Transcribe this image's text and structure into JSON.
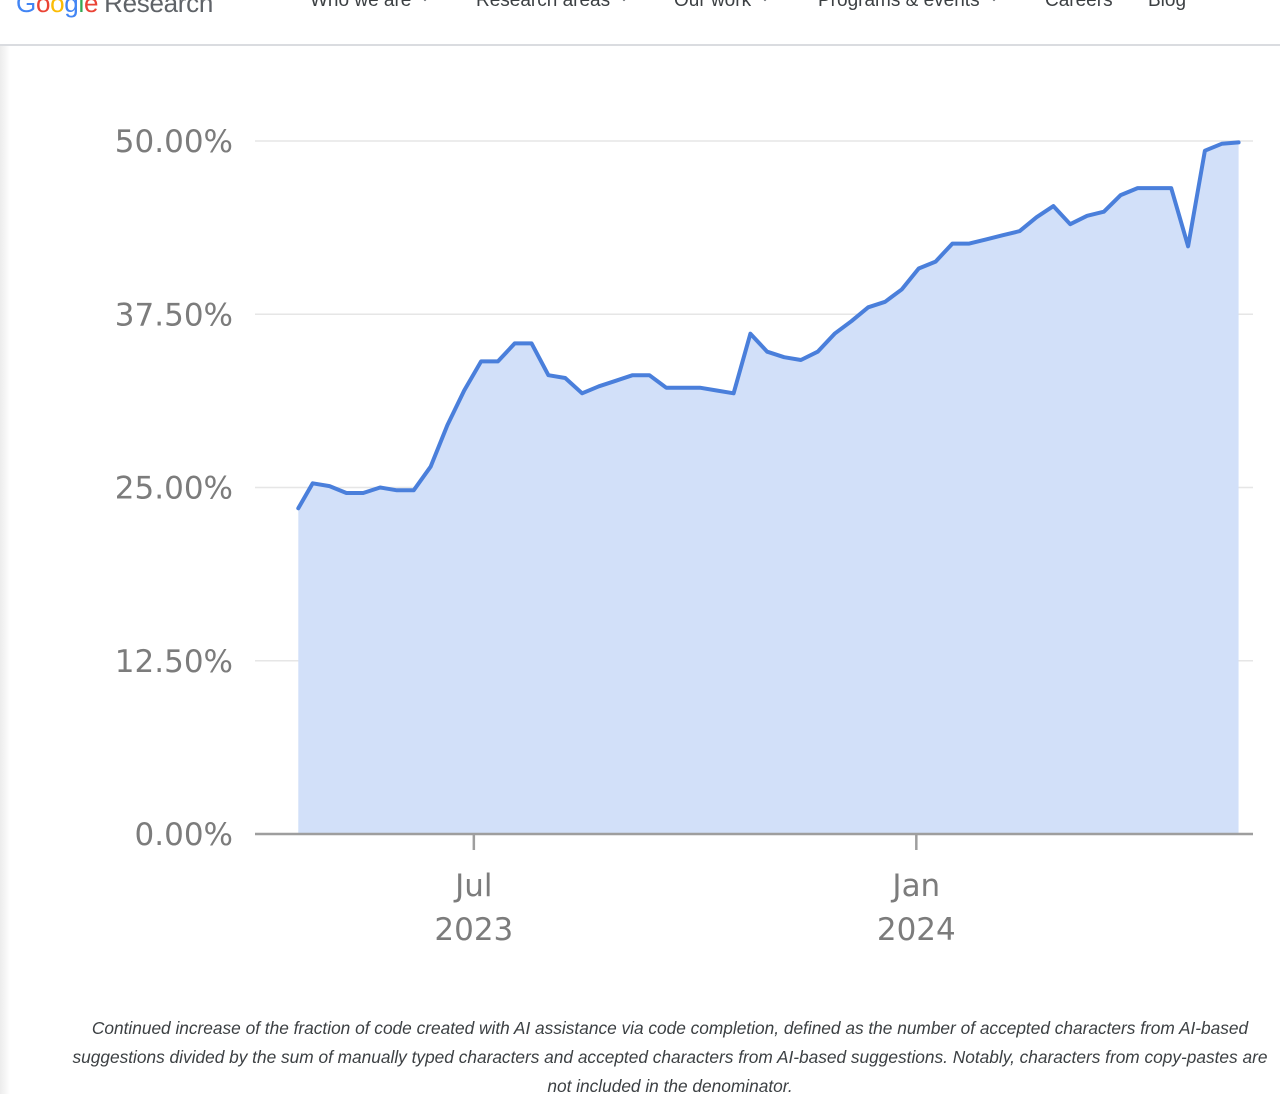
{
  "header": {
    "logo": {
      "google_letters": [
        {
          "ch": "G",
          "color": "#4285F4"
        },
        {
          "ch": "o",
          "color": "#EA4335"
        },
        {
          "ch": "o",
          "color": "#FBBC05"
        },
        {
          "ch": "g",
          "color": "#4285F4"
        },
        {
          "ch": "l",
          "color": "#34A853"
        },
        {
          "ch": "e",
          "color": "#EA4335"
        }
      ],
      "research": "Research"
    },
    "nav": [
      {
        "label": "Who we are",
        "dropdown": true
      },
      {
        "label": "Research areas",
        "dropdown": true
      },
      {
        "label": "Our work",
        "dropdown": true
      },
      {
        "label": "Programs & events",
        "dropdown": true
      },
      {
        "label": "Careers",
        "dropdown": false
      },
      {
        "label": "Blog",
        "dropdown": false
      }
    ]
  },
  "chart_data": {
    "type": "area",
    "title": "",
    "xlabel": "",
    "ylabel": "",
    "ylim": [
      0,
      50
    ],
    "yticks": [
      {
        "value": 0,
        "label": "0.00%"
      },
      {
        "value": 12.5,
        "label": "12.50%"
      },
      {
        "value": 25,
        "label": "25.00%"
      },
      {
        "value": 37.5,
        "label": "37.50%"
      },
      {
        "value": 50,
        "label": "50.00%"
      }
    ],
    "xticks": [
      {
        "date": "2023-07-01",
        "label_top": "Jul",
        "label_bottom": "2023"
      },
      {
        "date": "2024-01-01",
        "label_top": "Jan",
        "label_bottom": "2024"
      }
    ],
    "xlim": [
      "2023-04-01",
      "2024-05-20"
    ],
    "grid": true,
    "line_color": "#4a7fdb",
    "fill_color": "#d2e0f9",
    "x": [
      "2023-04-19",
      "2023-04-25",
      "2023-05-02",
      "2023-05-09",
      "2023-05-16",
      "2023-05-23",
      "2023-05-30",
      "2023-06-06",
      "2023-06-13",
      "2023-06-20",
      "2023-06-27",
      "2023-07-04",
      "2023-07-11",
      "2023-07-18",
      "2023-07-25",
      "2023-08-01",
      "2023-08-08",
      "2023-08-15",
      "2023-08-22",
      "2023-08-29",
      "2023-09-05",
      "2023-09-12",
      "2023-09-19",
      "2023-09-26",
      "2023-10-03",
      "2023-10-10",
      "2023-10-17",
      "2023-10-24",
      "2023-10-31",
      "2023-11-07",
      "2023-11-14",
      "2023-11-21",
      "2023-11-28",
      "2023-12-05",
      "2023-12-12",
      "2023-12-19",
      "2023-12-26",
      "2024-01-02",
      "2024-01-09",
      "2024-01-16",
      "2024-01-23",
      "2024-01-30",
      "2024-02-06",
      "2024-02-13",
      "2024-02-20",
      "2024-02-27",
      "2024-03-05",
      "2024-03-12",
      "2024-03-19",
      "2024-03-26",
      "2024-04-02",
      "2024-04-09",
      "2024-04-16",
      "2024-04-23",
      "2024-04-30",
      "2024-05-07",
      "2024-05-14"
    ],
    "values": [
      23.5,
      25.3,
      25.1,
      24.6,
      24.6,
      25.0,
      24.8,
      24.8,
      26.5,
      29.5,
      32.0,
      34.1,
      34.1,
      35.4,
      35.4,
      33.1,
      32.9,
      31.8,
      32.3,
      32.7,
      33.1,
      33.1,
      32.2,
      32.2,
      32.2,
      32.0,
      31.8,
      36.1,
      34.8,
      34.4,
      34.2,
      34.8,
      36.1,
      37.0,
      38.0,
      38.4,
      39.3,
      40.8,
      41.3,
      42.6,
      42.6,
      42.9,
      43.2,
      43.5,
      44.5,
      45.3,
      44.0,
      44.6,
      44.9,
      46.1,
      46.6,
      46.6,
      46.6,
      42.4,
      49.3,
      49.8,
      49.9
    ]
  },
  "caption": "Continued increase of the fraction of code created with AI assistance via code completion, defined as the number of accepted characters from AI-based suggestions divided by the sum of manually typed characters and accepted characters from AI-based suggestions. Notably, characters from copy-pastes are not included in the denominator."
}
